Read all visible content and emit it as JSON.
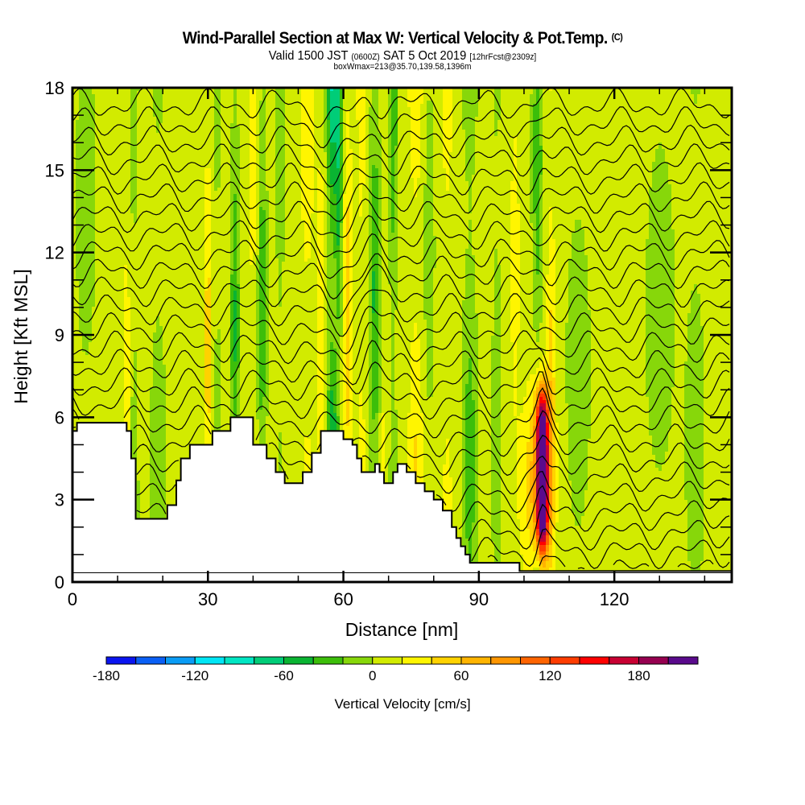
{
  "header": {
    "title": "Wind-Parallel Section at Max W: Vertical Velocity & Pot.Temp.",
    "copyright": "(C)",
    "valid_prefix": "Valid 1500 JST",
    "valid_utc": "(0600Z)",
    "valid_date": "SAT 5 Oct 2019",
    "forecast": "[12hrFcst@2309z]",
    "box_info": "boxWmax=213@35.70,139.58,1396m"
  },
  "chart_data": {
    "type": "heatmap",
    "title": "Wind-Parallel Section at Max W: Vertical Velocity & Pot.Temp.",
    "subtitle": "Valid 1500 JST (0600Z) SAT 5 Oct 2019 [12hrFcst@2309z]",
    "xlabel": "Distance [nm]",
    "ylabel": "Height [Kft MSL]",
    "xlim": [
      0,
      146
    ],
    "ylim": [
      0,
      18
    ],
    "x_ticks": [
      "0",
      "30",
      "60",
      "90",
      "120"
    ],
    "x_tick_values": [
      0,
      30,
      60,
      90,
      120
    ],
    "x_minor_step": 10,
    "y_ticks": [
      "0",
      "3",
      "6",
      "9",
      "12",
      "15",
      "18"
    ],
    "y_tick_values": [
      0,
      3,
      6,
      9,
      12,
      15,
      18
    ],
    "y_minor_step": 1,
    "colorbar": {
      "title": "Vertical Velocity [cm/s]",
      "labels": [
        "-180",
        "-120",
        "-60",
        "0",
        "60",
        "120",
        "180"
      ],
      "label_values": [
        -180,
        -120,
        -60,
        0,
        60,
        120,
        180
      ],
      "min": -180,
      "max": 220,
      "step": 20,
      "colors": [
        "#0a14f0",
        "#0a5ff5",
        "#0a9cf5",
        "#00e6f5",
        "#00e6c3",
        "#00cd78",
        "#0ab432",
        "#3cbe0a",
        "#87d70a",
        "#d2eb00",
        "#fff500",
        "#ffd200",
        "#ffb400",
        "#ff9600",
        "#ff6400",
        "#ff3c00",
        "#ff0000",
        "#c80032",
        "#960050",
        "#5a0a8c"
      ]
    },
    "features": {
      "max_updraft_x_nm": 104,
      "max_updraft_top_kft": 7,
      "max_w_cm_s": 213,
      "terrain_profile": {
        "x_nm": [
          0,
          1,
          5,
          12,
          13,
          14,
          15,
          21,
          23,
          24,
          26,
          29,
          30,
          31,
          35,
          38,
          40,
          43,
          45,
          47,
          48,
          51,
          53,
          55,
          57,
          58,
          60,
          62,
          63,
          64,
          66,
          67,
          68,
          69,
          70,
          71,
          72,
          73,
          74,
          76,
          78,
          80,
          82,
          84,
          85,
          86,
          87,
          88,
          90,
          92,
          95,
          98,
          99,
          146
        ],
        "height_kft": [
          5.5,
          5.8,
          5.8,
          5.5,
          4.5,
          2.3,
          2.3,
          2.8,
          3.7,
          4.5,
          5.0,
          5.0,
          5.0,
          5.5,
          6.0,
          6.0,
          5.0,
          4.5,
          4.0,
          3.6,
          3.6,
          4.0,
          4.7,
          5.5,
          5.5,
          5.5,
          5.2,
          5.0,
          4.5,
          4.0,
          4.0,
          4.3,
          4.0,
          3.6,
          3.6,
          4.0,
          4.3,
          4.3,
          4.0,
          3.6,
          3.3,
          3.0,
          2.6,
          2.0,
          1.6,
          1.3,
          1.0,
          0.7,
          0.7,
          0.7,
          0.7,
          0.7,
          0.4,
          0.4
        ]
      }
    },
    "potential_temperature_contours": "black isentropes, roughly 25 levels across the section"
  }
}
